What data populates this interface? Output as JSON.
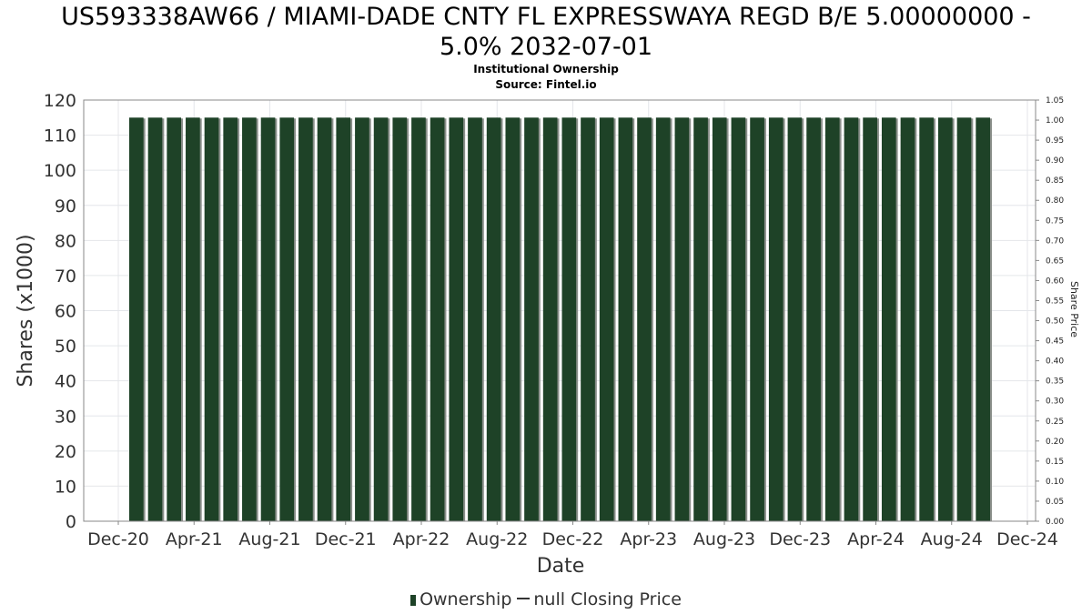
{
  "chart_data": {
    "type": "bar",
    "title_line1": "US593338AW66 / MIAMI-DADE CNTY FL EXPRESSWAYA REGD B/E 5.00000000 -",
    "title_line2": "5.0% 2032-07-01",
    "subtitle": "Institutional Ownership",
    "source": "Source: Fintel.io",
    "xlabel": "Date",
    "ylabel": "Shares (x1000)",
    "y2label": "Share Price",
    "ylim": [
      0,
      120
    ],
    "y2lim": [
      0,
      1.05
    ],
    "yticks": [
      "0",
      "10",
      "20",
      "30",
      "40",
      "50",
      "60",
      "70",
      "80",
      "90",
      "100",
      "110",
      "120"
    ],
    "y2ticks": [
      "0.00",
      "0.05",
      "0.10",
      "0.15",
      "0.20",
      "0.25",
      "0.30",
      "0.35",
      "0.40",
      "0.45",
      "0.50",
      "0.55",
      "0.60",
      "0.65",
      "0.70",
      "0.75",
      "0.80",
      "0.85",
      "0.90",
      "0.95",
      "1.00",
      "1.05"
    ],
    "xticks": [
      "Dec-20",
      "Apr-21",
      "Aug-21",
      "Dec-21",
      "Apr-22",
      "Aug-22",
      "Dec-22",
      "Apr-23",
      "Aug-23",
      "Dec-23",
      "Apr-24",
      "Aug-24",
      "Dec-24"
    ],
    "bar_count": 46,
    "bar_value": 115,
    "legend": [
      "Ownership",
      "null Closing Price"
    ],
    "colors": {
      "bar": "#1e4227",
      "bar_shadow": "#8a8f8a",
      "grid": "#e4e6ea"
    }
  }
}
